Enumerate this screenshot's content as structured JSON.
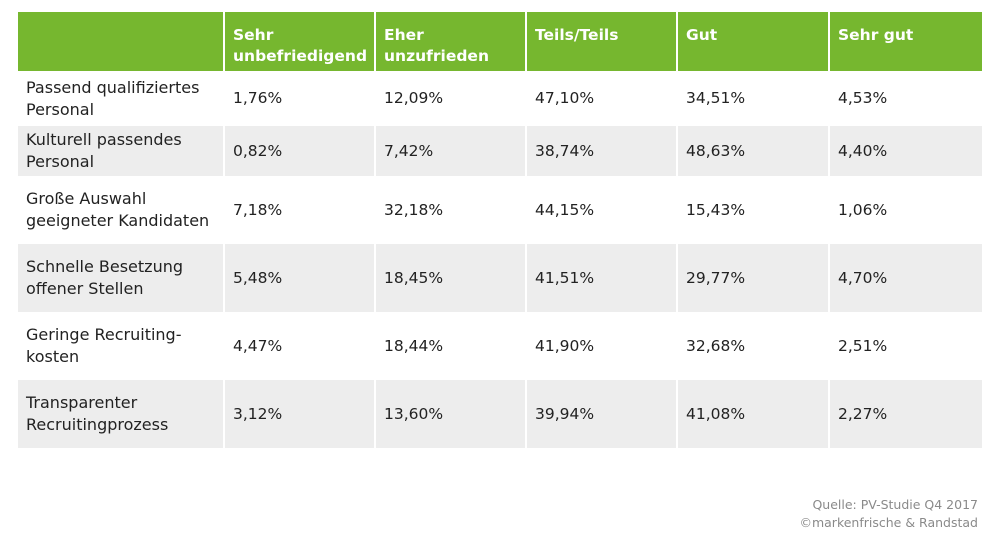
{
  "chart_data": {
    "type": "table",
    "columns": [
      "",
      "Sehr unbefriedigend",
      "Eher unzufrieden",
      "Teils/Teils",
      "Gut",
      "Sehr gut"
    ],
    "header_lines": [
      [
        ""
      ],
      [
        "Sehr",
        "unbefriedigend"
      ],
      [
        "Eher",
        "unzufrieden"
      ],
      [
        "Teils/Teils"
      ],
      [
        "Gut"
      ],
      [
        "Sehr gut"
      ]
    ],
    "rows": [
      {
        "label_lines": [
          "Passend qualifiziertes",
          "Personal"
        ],
        "values": [
          "1,76%",
          "12,09%",
          "47,10%",
          "34,51%",
          "4,53%"
        ]
      },
      {
        "label_lines": [
          "Kulturell passendes",
          "Personal"
        ],
        "values": [
          "0,82%",
          "7,42%",
          "38,74%",
          "48,63%",
          "4,40%"
        ]
      },
      {
        "label_lines": [
          "Große Auswahl",
          "geeigneter Kandidaten"
        ],
        "values": [
          "7,18%",
          "32,18%",
          "44,15%",
          "15,43%",
          "1,06%"
        ]
      },
      {
        "label_lines": [
          "Schnelle Besetzung",
          "offener Stellen"
        ],
        "values": [
          "5,48%",
          "18,45%",
          "41,51%",
          "29,77%",
          "4,70%"
        ]
      },
      {
        "label_lines": [
          "Geringe Recruiting-",
          "kosten"
        ],
        "values": [
          "4,47%",
          "18,44%",
          "41,90%",
          "32,68%",
          "2,51%"
        ]
      },
      {
        "label_lines": [
          "Transparenter",
          "Recruitingprozess"
        ],
        "values": [
          "3,12%",
          "13,60%",
          "39,94%",
          "41,08%",
          "2,27%"
        ]
      }
    ],
    "header_color": "#76b72f",
    "stripe_color": "#ededed"
  },
  "source": {
    "line1": "Quelle: PV-Studie Q4 2017",
    "line2": "©markenfrische & Randstad"
  }
}
